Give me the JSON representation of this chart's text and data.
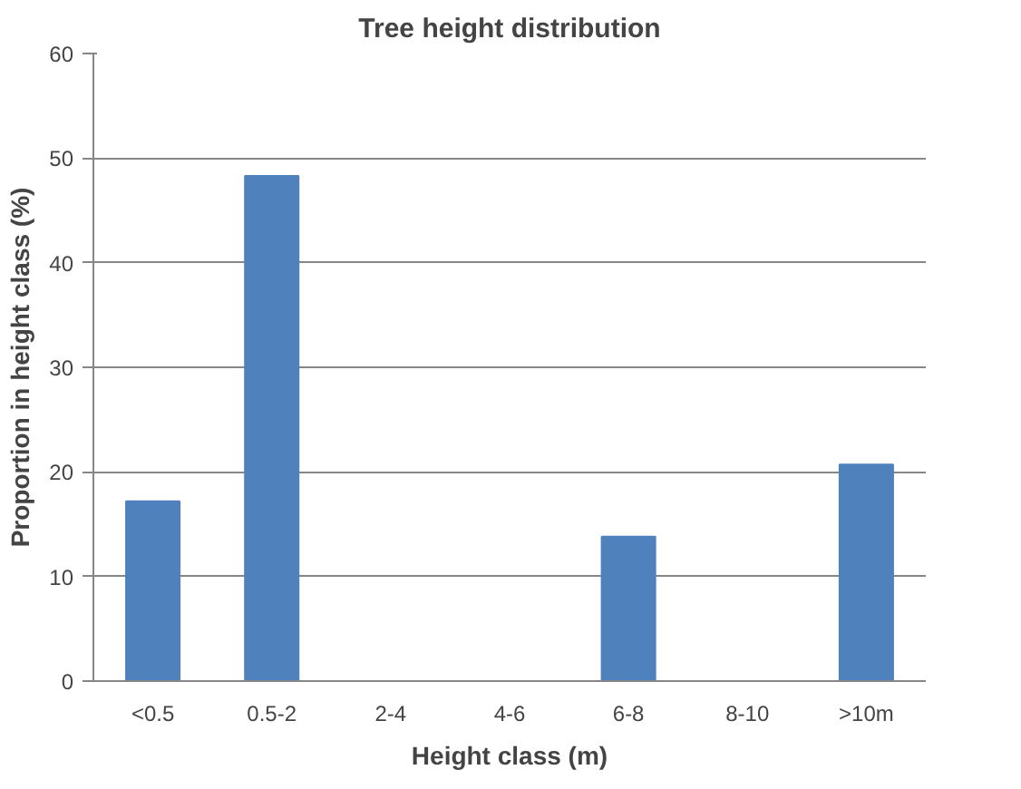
{
  "chart_data": {
    "type": "bar",
    "title": "Tree height distribution",
    "xlabel": "Height class (m)",
    "ylabel": "Proportion in height class (%)",
    "categories": [
      "<0.5",
      "0.5-2",
      "2-4",
      "4-6",
      "6-8",
      "8-10",
      ">10m"
    ],
    "values": [
      17.2,
      48.3,
      0,
      0,
      13.8,
      0,
      20.7
    ],
    "color": "#4f81bd",
    "ylim": [
      0,
      60
    ],
    "yticks": [
      0,
      10,
      20,
      30,
      40,
      50,
      60
    ],
    "grid": "y"
  }
}
